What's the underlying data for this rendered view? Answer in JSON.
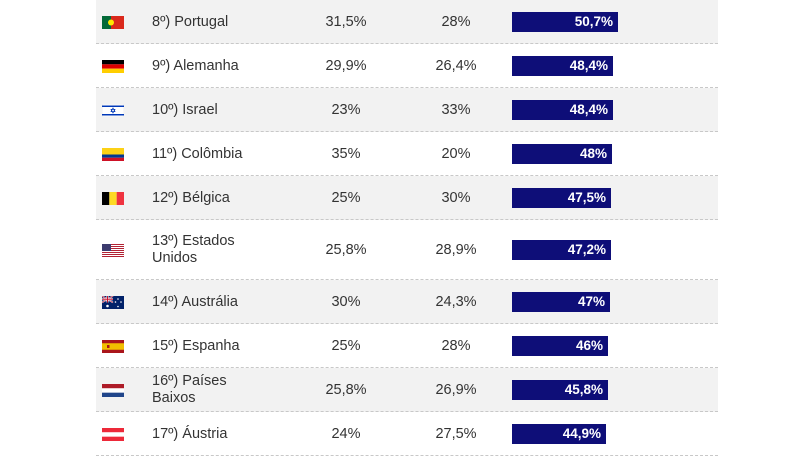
{
  "colors": {
    "bar": "#0e0e78",
    "row_shade": "#f2f2f2",
    "text": "#333333",
    "divider": "#c8c8c8"
  },
  "chart_data": {
    "type": "table",
    "value_max": 50.7,
    "rows": [
      {
        "rank_country": "8º) Portugal",
        "col1": "31,5%",
        "col2": "28%",
        "total": "50,7%",
        "total_value": 50.7,
        "flag": "portugal-flag-icon"
      },
      {
        "rank_country": "9º) Alemanha",
        "col1": "29,9%",
        "col2": "26,4%",
        "total": "48,4%",
        "total_value": 48.4,
        "flag": "germany-flag-icon"
      },
      {
        "rank_country": "10º) Israel",
        "col1": "23%",
        "col2": "33%",
        "total": "48,4%",
        "total_value": 48.4,
        "flag": "israel-flag-icon"
      },
      {
        "rank_country": "11º) Colômbia",
        "col1": "35%",
        "col2": "20%",
        "total": "48%",
        "total_value": 48.0,
        "flag": "colombia-flag-icon"
      },
      {
        "rank_country": "12º) Bélgica",
        "col1": "25%",
        "col2": "30%",
        "total": "47,5%",
        "total_value": 47.5,
        "flag": "belgium-flag-icon"
      },
      {
        "rank_country": "13º) Estados Unidos",
        "col1": "25,8%",
        "col2": "28,9%",
        "total": "47,2%",
        "total_value": 47.2,
        "flag": "usa-flag-icon"
      },
      {
        "rank_country": "14º) Austrália",
        "col1": "30%",
        "col2": "24,3%",
        "total": "47%",
        "total_value": 47.0,
        "flag": "australia-flag-icon"
      },
      {
        "rank_country": "15º) Espanha",
        "col1": "25%",
        "col2": "28%",
        "total": "46%",
        "total_value": 46.0,
        "flag": "spain-flag-icon"
      },
      {
        "rank_country": "16º) Países Baixos",
        "col1": "25,8%",
        "col2": "26,9%",
        "total": "45,8%",
        "total_value": 45.8,
        "flag": "netherlands-flag-icon"
      },
      {
        "rank_country": "17º) Áustria",
        "col1": "24%",
        "col2": "27,5%",
        "total": "44,9%",
        "total_value": 44.9,
        "flag": "austria-flag-icon"
      }
    ]
  }
}
